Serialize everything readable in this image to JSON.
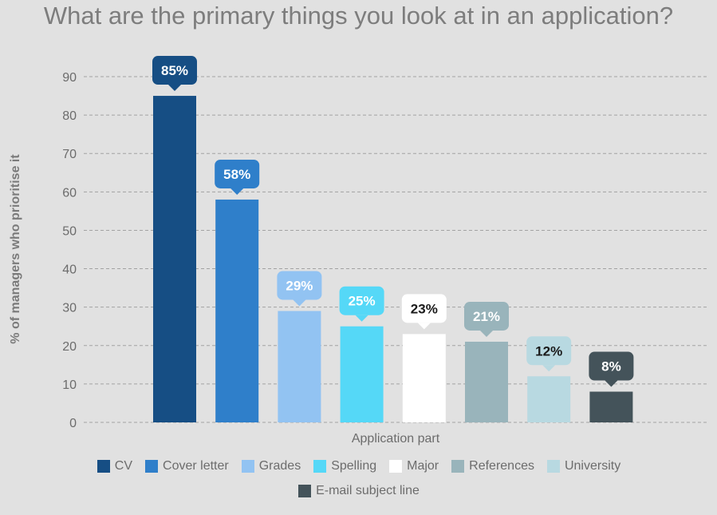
{
  "chart_data": {
    "type": "bar",
    "title": "What are the primary things you look at in an application?",
    "xlabel": "Application part",
    "ylabel": "% of managers who prioritise it",
    "ylim": [
      0,
      90
    ],
    "yticks": [
      0,
      10,
      20,
      30,
      40,
      50,
      60,
      70,
      80,
      90
    ],
    "grid": true,
    "legend_position": "bottom",
    "categories": [
      "CV",
      "Cover letter",
      "Grades",
      "Spelling",
      "Major",
      "References",
      "University",
      "E-mail subject line"
    ],
    "values": [
      85,
      58,
      29,
      25,
      23,
      21,
      12,
      8
    ],
    "data_labels": [
      "85%",
      "58%",
      "29%",
      "25%",
      "23%",
      "21%",
      "12%",
      "8%"
    ],
    "colors": [
      "#164e84",
      "#2f7fca",
      "#92c3f2",
      "#55d8f7",
      "#ffffff",
      "#99b4bb",
      "#b8d9e1",
      "#44535a"
    ],
    "label_text_colors": [
      "#ffffff",
      "#ffffff",
      "#ffffff",
      "#ffffff",
      "#1a1a1a",
      "#ffffff",
      "#1a1a1a",
      "#ffffff"
    ]
  }
}
